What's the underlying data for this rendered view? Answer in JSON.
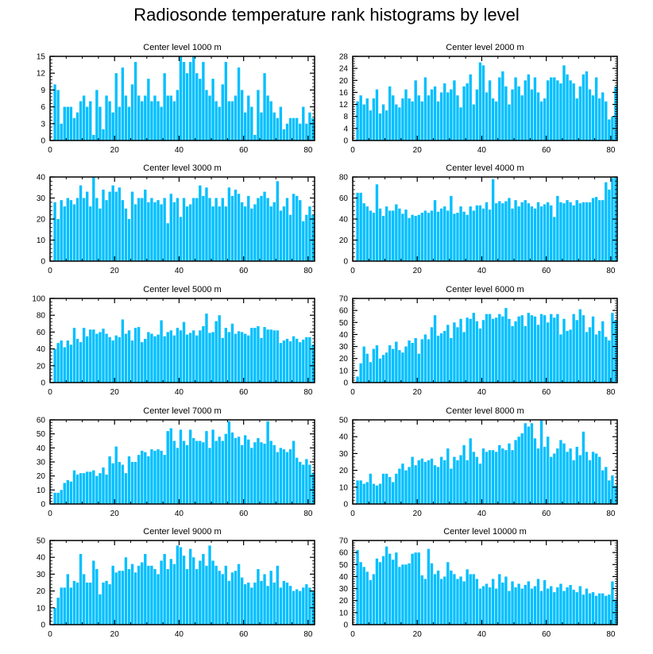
{
  "title": "Radiosonde temperature rank histograms by level",
  "bar_color": "#00bfff",
  "chart_data": [
    {
      "type": "bar",
      "title": "Center level 1000 m",
      "xlim": [
        0,
        82
      ],
      "ylim": [
        0,
        15
      ],
      "xticks": [
        0,
        20,
        40,
        60,
        80
      ],
      "yticks": [
        0,
        3,
        6,
        9,
        12,
        15
      ],
      "values": [
        0,
        10,
        9,
        3,
        6,
        6,
        6,
        4,
        5,
        7,
        8,
        6,
        7,
        1,
        9,
        6,
        2,
        8,
        7,
        5,
        12,
        6,
        13,
        8,
        6,
        10,
        14,
        8,
        7,
        8,
        11,
        7,
        8,
        7,
        6,
        12,
        8,
        8,
        7,
        9,
        15,
        14,
        12,
        14,
        15,
        12,
        11,
        14,
        9,
        8,
        11,
        7,
        6,
        10,
        14,
        7,
        7,
        8,
        13,
        9,
        5,
        8,
        6,
        1,
        9,
        5,
        12,
        8,
        7,
        5,
        4,
        6,
        2,
        3,
        4,
        4,
        4,
        3,
        6,
        3,
        5,
        4
      ]
    },
    {
      "type": "bar",
      "title": "Center level 2000 m",
      "xlim": [
        0,
        82
      ],
      "ylim": [
        0,
        28
      ],
      "xticks": [
        0,
        20,
        40,
        60,
        80
      ],
      "yticks": [
        0,
        4,
        8,
        12,
        16,
        20,
        24,
        28
      ],
      "values": [
        0,
        13,
        15,
        12,
        14,
        10,
        14,
        17,
        9,
        12,
        10,
        18,
        15,
        12,
        11,
        14,
        17,
        14,
        13,
        20,
        15,
        13,
        21,
        15,
        17,
        18,
        13,
        16,
        19,
        16,
        17,
        20,
        15,
        11,
        18,
        19,
        22,
        12,
        17,
        26,
        25,
        16,
        20,
        14,
        13,
        21,
        23,
        18,
        12,
        17,
        21,
        18,
        15,
        20,
        22,
        17,
        21,
        16,
        13,
        14,
        20,
        21,
        21,
        20,
        19,
        25,
        22,
        20,
        19,
        14,
        18,
        22,
        23,
        17,
        15,
        21,
        14,
        16,
        13,
        7,
        8,
        18
      ]
    },
    {
      "type": "bar",
      "title": "Center level 3000 m",
      "xlim": [
        0,
        82
      ],
      "ylim": [
        0,
        40
      ],
      "xticks": [
        0,
        20,
        40,
        60,
        80
      ],
      "yticks": [
        0,
        10,
        20,
        30,
        40
      ],
      "values": [
        0,
        28,
        20,
        29,
        26,
        30,
        29,
        27,
        30,
        36,
        30,
        33,
        26,
        40,
        30,
        25,
        34,
        29,
        33,
        36,
        33,
        35,
        29,
        25,
        20,
        33,
        27,
        30,
        30,
        34,
        28,
        30,
        28,
        29,
        27,
        30,
        18,
        32,
        28,
        30,
        21,
        30,
        26,
        27,
        30,
        30,
        36,
        31,
        35,
        30,
        26,
        30,
        26,
        30,
        26,
        35,
        31,
        34,
        32,
        28,
        26,
        31,
        25,
        27,
        30,
        31,
        33,
        30,
        26,
        28,
        38,
        24,
        26,
        30,
        22,
        32,
        31,
        29,
        19,
        22,
        26,
        22
      ]
    },
    {
      "type": "bar",
      "title": "Center level 4000 m",
      "xlim": [
        0,
        82
      ],
      "ylim": [
        0,
        80
      ],
      "xticks": [
        0,
        20,
        40,
        60,
        80
      ],
      "yticks": [
        0,
        20,
        40,
        60,
        80
      ],
      "values": [
        0,
        65,
        65,
        55,
        52,
        48,
        46,
        73,
        50,
        43,
        52,
        48,
        48,
        54,
        50,
        45,
        49,
        41,
        44,
        43,
        44,
        46,
        48,
        46,
        48,
        58,
        47,
        50,
        52,
        48,
        62,
        45,
        46,
        52,
        47,
        44,
        52,
        48,
        53,
        53,
        50,
        56,
        49,
        78,
        55,
        57,
        55,
        57,
        60,
        50,
        58,
        52,
        56,
        58,
        55,
        52,
        50,
        56,
        52,
        54,
        56,
        53,
        42,
        62,
        56,
        55,
        58,
        56,
        53,
        58,
        55,
        56,
        56,
        56,
        60,
        61,
        58,
        58,
        75,
        68,
        79,
        80
      ]
    },
    {
      "type": "bar",
      "title": "Center level 5000 m",
      "xlim": [
        0,
        82
      ],
      "ylim": [
        0,
        100
      ],
      "xticks": [
        0,
        20,
        40,
        60,
        80
      ],
      "yticks": [
        0,
        20,
        40,
        60,
        80,
        100
      ],
      "values": [
        0,
        40,
        47,
        50,
        42,
        50,
        45,
        65,
        52,
        48,
        65,
        55,
        63,
        63,
        58,
        60,
        64,
        58,
        54,
        50,
        56,
        54,
        75,
        58,
        62,
        50,
        65,
        66,
        48,
        52,
        60,
        58,
        55,
        57,
        74,
        55,
        60,
        62,
        56,
        65,
        62,
        72,
        57,
        59,
        62,
        56,
        62,
        67,
        82,
        59,
        60,
        73,
        80,
        53,
        65,
        60,
        70,
        58,
        61,
        60,
        58,
        56,
        65,
        65,
        67,
        53,
        66,
        63,
        63,
        62,
        62,
        47,
        50,
        52,
        49,
        55,
        52,
        48,
        51,
        54,
        54,
        45
      ]
    },
    {
      "type": "bar",
      "title": "Center level 6000 m",
      "xlim": [
        0,
        82
      ],
      "ylim": [
        0,
        70
      ],
      "xticks": [
        0,
        20,
        40,
        60,
        80
      ],
      "yticks": [
        0,
        10,
        20,
        30,
        40,
        50,
        60,
        70
      ],
      "values": [
        0,
        5,
        16,
        30,
        24,
        17,
        28,
        31,
        20,
        23,
        25,
        31,
        28,
        34,
        27,
        25,
        30,
        35,
        33,
        37,
        24,
        36,
        40,
        36,
        46,
        56,
        39,
        41,
        43,
        48,
        37,
        50,
        46,
        53,
        42,
        54,
        53,
        58,
        51,
        45,
        52,
        57,
        57,
        53,
        54,
        57,
        55,
        62,
        53,
        47,
        51,
        55,
        56,
        47,
        58,
        56,
        55,
        48,
        57,
        56,
        50,
        57,
        54,
        57,
        40,
        53,
        43,
        44,
        57,
        52,
        61,
        56,
        42,
        46,
        55,
        40,
        43,
        51,
        38,
        35,
        58,
        52
      ]
    },
    {
      "type": "bar",
      "title": "Center level 7000 m",
      "xlim": [
        0,
        82
      ],
      "ylim": [
        0,
        60
      ],
      "xticks": [
        0,
        20,
        40,
        60,
        80
      ],
      "yticks": [
        0,
        10,
        20,
        30,
        40,
        50,
        60
      ],
      "values": [
        0,
        8,
        8,
        10,
        15,
        17,
        16,
        24,
        21,
        22,
        22,
        23,
        23,
        24,
        20,
        22,
        26,
        21,
        34,
        29,
        41,
        30,
        28,
        22,
        34,
        30,
        30,
        35,
        38,
        37,
        34,
        39,
        38,
        39,
        38,
        35,
        52,
        54,
        45,
        40,
        53,
        45,
        42,
        53,
        47,
        45,
        45,
        44,
        52,
        40,
        53,
        45,
        48,
        45,
        50,
        59,
        51,
        47,
        48,
        42,
        49,
        46,
        40,
        44,
        47,
        44,
        43,
        59,
        45,
        42,
        37,
        40,
        39,
        37,
        39,
        45,
        33,
        30,
        28,
        32,
        28,
        22
      ]
    },
    {
      "type": "bar",
      "title": "Center level 8000 m",
      "xlim": [
        0,
        82
      ],
      "ylim": [
        0,
        50
      ],
      "xticks": [
        0,
        20,
        40,
        60,
        80
      ],
      "yticks": [
        0,
        10,
        20,
        30,
        40,
        50
      ],
      "values": [
        0,
        14,
        14,
        12,
        13,
        18,
        12,
        11,
        12,
        18,
        18,
        16,
        13,
        18,
        21,
        24,
        20,
        22,
        28,
        23,
        26,
        27,
        25,
        26,
        27,
        23,
        22,
        28,
        26,
        33,
        21,
        28,
        26,
        29,
        35,
        26,
        39,
        31,
        28,
        24,
        33,
        31,
        32,
        32,
        31,
        35,
        33,
        32,
        36,
        32,
        38,
        40,
        42,
        48,
        46,
        48,
        39,
        33,
        50,
        34,
        40,
        28,
        30,
        33,
        38,
        36,
        31,
        33,
        26,
        34,
        29,
        43,
        31,
        26,
        31,
        30,
        28,
        20,
        22,
        14,
        17,
        11
      ]
    },
    {
      "type": "bar",
      "title": "Center level 9000 m",
      "xlim": [
        0,
        82
      ],
      "ylim": [
        0,
        50
      ],
      "xticks": [
        0,
        20,
        40,
        60,
        80
      ],
      "yticks": [
        0,
        10,
        20,
        30,
        40,
        50
      ],
      "values": [
        0,
        10,
        16,
        22,
        22,
        30,
        22,
        26,
        25,
        42,
        30,
        25,
        25,
        38,
        33,
        18,
        25,
        26,
        24,
        35,
        31,
        32,
        32,
        40,
        33,
        36,
        31,
        35,
        37,
        42,
        35,
        35,
        33,
        30,
        38,
        42,
        33,
        39,
        36,
        47,
        46,
        41,
        33,
        45,
        40,
        33,
        38,
        42,
        35,
        47,
        38,
        35,
        32,
        30,
        35,
        26,
        31,
        32,
        36,
        28,
        24,
        25,
        22,
        25,
        33,
        26,
        30,
        23,
        32,
        25,
        35,
        22,
        26,
        25,
        23,
        20,
        21,
        20,
        22,
        24,
        22,
        20
      ]
    },
    {
      "type": "bar",
      "title": "Center level 10000 m",
      "xlim": [
        0,
        82
      ],
      "ylim": [
        0,
        70
      ],
      "xticks": [
        0,
        20,
        40,
        60,
        80
      ],
      "yticks": [
        0,
        10,
        20,
        30,
        40,
        50,
        60,
        70
      ],
      "values": [
        0,
        62,
        52,
        48,
        44,
        37,
        42,
        55,
        52,
        57,
        65,
        59,
        54,
        60,
        48,
        50,
        50,
        51,
        59,
        60,
        60,
        41,
        38,
        63,
        51,
        42,
        45,
        38,
        40,
        52,
        45,
        42,
        38,
        40,
        36,
        46,
        42,
        42,
        38,
        30,
        32,
        34,
        31,
        38,
        30,
        42,
        35,
        40,
        28,
        36,
        31,
        34,
        30,
        33,
        36,
        30,
        32,
        38,
        28,
        37,
        30,
        32,
        27,
        31,
        34,
        28,
        31,
        33,
        29,
        27,
        32,
        25,
        30,
        26,
        27,
        24,
        26,
        26,
        24,
        25,
        36,
        21
      ]
    }
  ]
}
